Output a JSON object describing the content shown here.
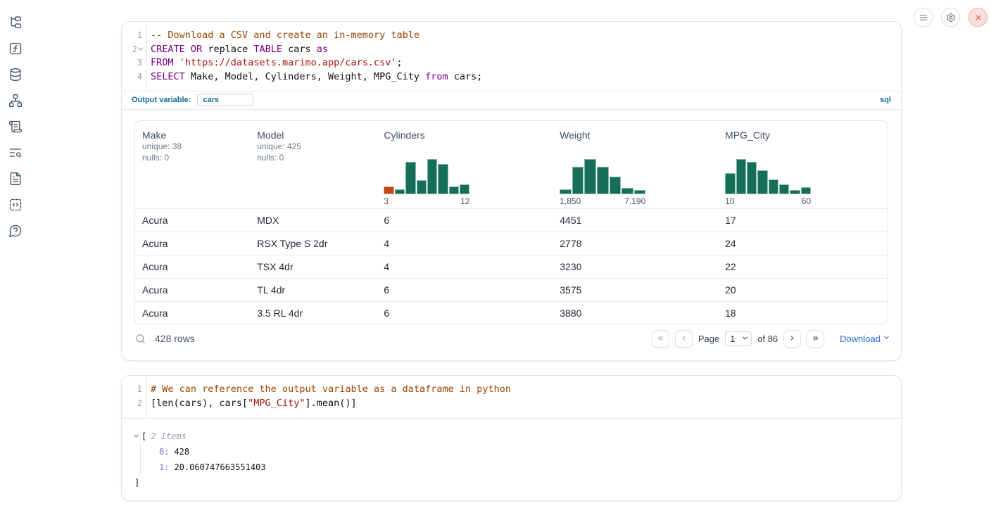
{
  "sidebar": {
    "items": [
      {
        "icon": "file-tree"
      },
      {
        "icon": "function-square"
      },
      {
        "icon": "database"
      },
      {
        "icon": "dependency-graph"
      },
      {
        "icon": "scroll-text"
      },
      {
        "icon": "text-search"
      },
      {
        "icon": "file-text"
      },
      {
        "icon": "code-snippet"
      },
      {
        "icon": "help-bubble"
      }
    ]
  },
  "topbar": {
    "buttons": [
      {
        "icon": "menu"
      },
      {
        "icon": "settings"
      },
      {
        "icon": "close",
        "accent": "#e03c3c"
      }
    ]
  },
  "sql_cell": {
    "language_badge": "sql",
    "output_variable": {
      "label": "Output variable:",
      "value": "cars"
    },
    "lines": [
      {
        "n": "1",
        "fold": false,
        "tokens": [
          [
            "c",
            "-- Download a CSV and create an in-memory table"
          ]
        ]
      },
      {
        "n": "2",
        "fold": true,
        "tokens": [
          [
            "k",
            "CREATE"
          ],
          [
            "p",
            " "
          ],
          [
            "k",
            "OR"
          ],
          [
            "p",
            " replace "
          ],
          [
            "k",
            "TABLE"
          ],
          [
            "p",
            " cars "
          ],
          [
            "k",
            "as"
          ]
        ]
      },
      {
        "n": "3",
        "fold": false,
        "tokens": [
          [
            "k",
            "FROM"
          ],
          [
            "p",
            " "
          ],
          [
            "s",
            "'https://datasets.marimo.app/cars.csv'"
          ],
          [
            "p",
            ";"
          ]
        ]
      },
      {
        "n": "4",
        "fold": false,
        "tokens": [
          [
            "k",
            "SELECT"
          ],
          [
            "p",
            " Make, Model, Cylinders, Weight, MPG_City "
          ],
          [
            "k",
            "from"
          ],
          [
            "p",
            " cars;"
          ]
        ]
      }
    ]
  },
  "table": {
    "accent_colors": {
      "hist_bar": "#156e58",
      "hist_bar_highlight": "#c44716"
    },
    "columns": [
      {
        "name": "Make",
        "stats": [
          "unique: 38",
          "nulls: 0"
        ]
      },
      {
        "name": "Model",
        "stats": [
          "unique: 425",
          "nulls: 0"
        ]
      },
      {
        "name": "Cylinders",
        "hist": {
          "type": "bar",
          "bars": [
            0.22,
            0.14,
            0.92,
            0.4,
            1.0,
            0.86,
            0.22,
            0.28
          ],
          "highlight_index": 0,
          "min_label": "3",
          "max_label": "12"
        }
      },
      {
        "name": "Weight",
        "hist": {
          "type": "bar",
          "bars": [
            0.14,
            0.78,
            1.0,
            0.78,
            0.5,
            0.17,
            0.12
          ],
          "min_label": "1,850",
          "max_label": "7,190"
        }
      },
      {
        "name": "MPG_City",
        "hist": {
          "type": "bar",
          "bars": [
            0.6,
            1.0,
            0.92,
            0.67,
            0.41,
            0.27,
            0.12,
            0.2
          ],
          "min_label": "10",
          "max_label": "60"
        }
      }
    ],
    "rows": [
      [
        "Acura",
        "MDX",
        "6",
        "4451",
        "17"
      ],
      [
        "Acura",
        "RSX Type S 2dr",
        "4",
        "2778",
        "24"
      ],
      [
        "Acura",
        "TSX 4dr",
        "4",
        "3230",
        "22"
      ],
      [
        "Acura",
        "TL 4dr",
        "6",
        "3575",
        "20"
      ],
      [
        "Acura",
        "3.5 RL 4dr",
        "6",
        "3880",
        "18"
      ]
    ],
    "footer": {
      "search_icon": "search",
      "rows_count": "428 rows",
      "page_label": "Page",
      "page_value": "1",
      "of_label": "of 86",
      "download_label": "Download",
      "pager_icons": [
        {
          "icon": "first-page",
          "glyph": "«",
          "disabled": true
        },
        {
          "icon": "prev-page",
          "glyph": "‹",
          "disabled": true
        },
        {
          "icon": "next-page",
          "glyph": "›",
          "disabled": false
        },
        {
          "icon": "last-page",
          "glyph": "»",
          "disabled": false
        }
      ]
    }
  },
  "python_cell": {
    "lines": [
      {
        "n": "1",
        "fold": false,
        "tokens": [
          [
            "c",
            "# We can reference the output variable as a dataframe in python"
          ]
        ]
      },
      {
        "n": "2",
        "fold": false,
        "tokens": [
          [
            "p",
            "[len(cars), cars["
          ],
          [
            "s",
            "\"MPG_City\""
          ],
          [
            "p",
            "].mean()]"
          ]
        ]
      }
    ]
  },
  "output_list": {
    "bracket_open": "[",
    "items_label": "2 Items",
    "entries": [
      {
        "key": "0",
        "value": "428"
      },
      {
        "key": "1",
        "value": "20.060747663551403"
      }
    ],
    "bracket_close": "]"
  }
}
